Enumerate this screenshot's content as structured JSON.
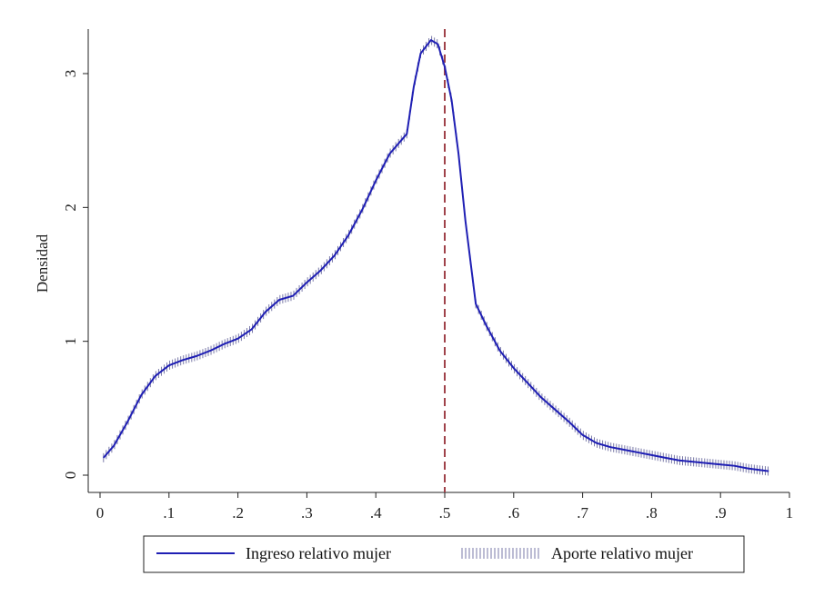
{
  "chart_data": {
    "type": "line",
    "title": "",
    "xlabel": "",
    "ylabel": "Densidad",
    "xlim": [
      0,
      1
    ],
    "ylim": [
      0,
      3.3
    ],
    "x_ticks": [
      0,
      0.1,
      0.2,
      0.3,
      0.4,
      0.5,
      0.6,
      0.7,
      0.8,
      0.9,
      1
    ],
    "x_tick_labels": [
      "0",
      ".1",
      ".2",
      ".3",
      ".4",
      ".5",
      ".6",
      ".7",
      ".8",
      ".9",
      "1"
    ],
    "y_ticks": [
      0,
      1,
      2,
      3
    ],
    "y_tick_labels": [
      "0",
      "1",
      "2",
      "3"
    ],
    "grid": false,
    "legend_position": "bottom",
    "reference_line": {
      "x": 0.5,
      "style": "dashed",
      "color": "#a0424a"
    },
    "series": [
      {
        "name": "Ingreso relativo mujer",
        "style": "solid",
        "color": "#1f1fb4",
        "points": [
          [
            0.005,
            0.13
          ],
          [
            0.02,
            0.22
          ],
          [
            0.04,
            0.4
          ],
          [
            0.06,
            0.6
          ],
          [
            0.08,
            0.74
          ],
          [
            0.1,
            0.82
          ],
          [
            0.12,
            0.86
          ],
          [
            0.14,
            0.89
          ],
          [
            0.16,
            0.93
          ],
          [
            0.18,
            0.98
          ],
          [
            0.2,
            1.02
          ],
          [
            0.22,
            1.09
          ],
          [
            0.24,
            1.22
          ],
          [
            0.26,
            1.31
          ],
          [
            0.28,
            1.34
          ],
          [
            0.3,
            1.44
          ],
          [
            0.32,
            1.53
          ],
          [
            0.34,
            1.64
          ],
          [
            0.36,
            1.79
          ],
          [
            0.38,
            1.98
          ],
          [
            0.4,
            2.2
          ],
          [
            0.42,
            2.4
          ],
          [
            0.445,
            2.55
          ],
          [
            0.455,
            2.9
          ],
          [
            0.465,
            3.15
          ],
          [
            0.48,
            3.25
          ],
          [
            0.49,
            3.22
          ],
          [
            0.5,
            3.05
          ],
          [
            0.51,
            2.8
          ],
          [
            0.52,
            2.4
          ],
          [
            0.53,
            1.9
          ],
          [
            0.545,
            1.28
          ],
          [
            0.56,
            1.12
          ],
          [
            0.58,
            0.93
          ],
          [
            0.6,
            0.8
          ],
          [
            0.62,
            0.69
          ],
          [
            0.64,
            0.58
          ],
          [
            0.66,
            0.49
          ],
          [
            0.68,
            0.4
          ],
          [
            0.7,
            0.3
          ],
          [
            0.72,
            0.24
          ],
          [
            0.74,
            0.21
          ],
          [
            0.76,
            0.19
          ],
          [
            0.78,
            0.17
          ],
          [
            0.8,
            0.15
          ],
          [
            0.82,
            0.13
          ],
          [
            0.84,
            0.11
          ],
          [
            0.86,
            0.1
          ],
          [
            0.88,
            0.09
          ],
          [
            0.9,
            0.08
          ],
          [
            0.92,
            0.07
          ],
          [
            0.94,
            0.05
          ],
          [
            0.97,
            0.03
          ]
        ]
      },
      {
        "name": "Aporte relativo mujer",
        "style": "tick-marked",
        "color": "#7a7aa8",
        "points": [
          [
            0.005,
            0.13
          ],
          [
            0.02,
            0.22
          ],
          [
            0.04,
            0.4
          ],
          [
            0.06,
            0.6
          ],
          [
            0.08,
            0.74
          ],
          [
            0.1,
            0.82
          ],
          [
            0.12,
            0.86
          ],
          [
            0.14,
            0.89
          ],
          [
            0.16,
            0.93
          ],
          [
            0.18,
            0.98
          ],
          [
            0.2,
            1.02
          ],
          [
            0.22,
            1.09
          ],
          [
            0.24,
            1.22
          ],
          [
            0.26,
            1.31
          ],
          [
            0.28,
            1.34
          ],
          [
            0.3,
            1.44
          ],
          [
            0.32,
            1.53
          ],
          [
            0.34,
            1.64
          ],
          [
            0.36,
            1.79
          ],
          [
            0.38,
            1.98
          ],
          [
            0.4,
            2.2
          ],
          [
            0.42,
            2.4
          ],
          [
            0.445,
            2.55
          ],
          [
            0.455,
            2.9
          ],
          [
            0.465,
            3.15
          ],
          [
            0.48,
            3.25
          ],
          [
            0.49,
            3.22
          ],
          [
            0.5,
            3.05
          ],
          [
            0.51,
            2.8
          ],
          [
            0.52,
            2.4
          ],
          [
            0.53,
            1.9
          ],
          [
            0.545,
            1.28
          ],
          [
            0.56,
            1.12
          ],
          [
            0.58,
            0.93
          ],
          [
            0.6,
            0.8
          ],
          [
            0.62,
            0.69
          ],
          [
            0.64,
            0.58
          ],
          [
            0.66,
            0.49
          ],
          [
            0.68,
            0.4
          ],
          [
            0.7,
            0.3
          ],
          [
            0.72,
            0.24
          ],
          [
            0.74,
            0.21
          ],
          [
            0.76,
            0.19
          ],
          [
            0.78,
            0.17
          ],
          [
            0.8,
            0.15
          ],
          [
            0.82,
            0.13
          ],
          [
            0.84,
            0.11
          ],
          [
            0.86,
            0.1
          ],
          [
            0.88,
            0.09
          ],
          [
            0.9,
            0.08
          ],
          [
            0.92,
            0.07
          ],
          [
            0.94,
            0.05
          ],
          [
            0.97,
            0.03
          ]
        ]
      }
    ]
  },
  "legend": {
    "item1_label": "Ingreso relativo mujer",
    "item2_label": "Aporte relativo mujer"
  }
}
